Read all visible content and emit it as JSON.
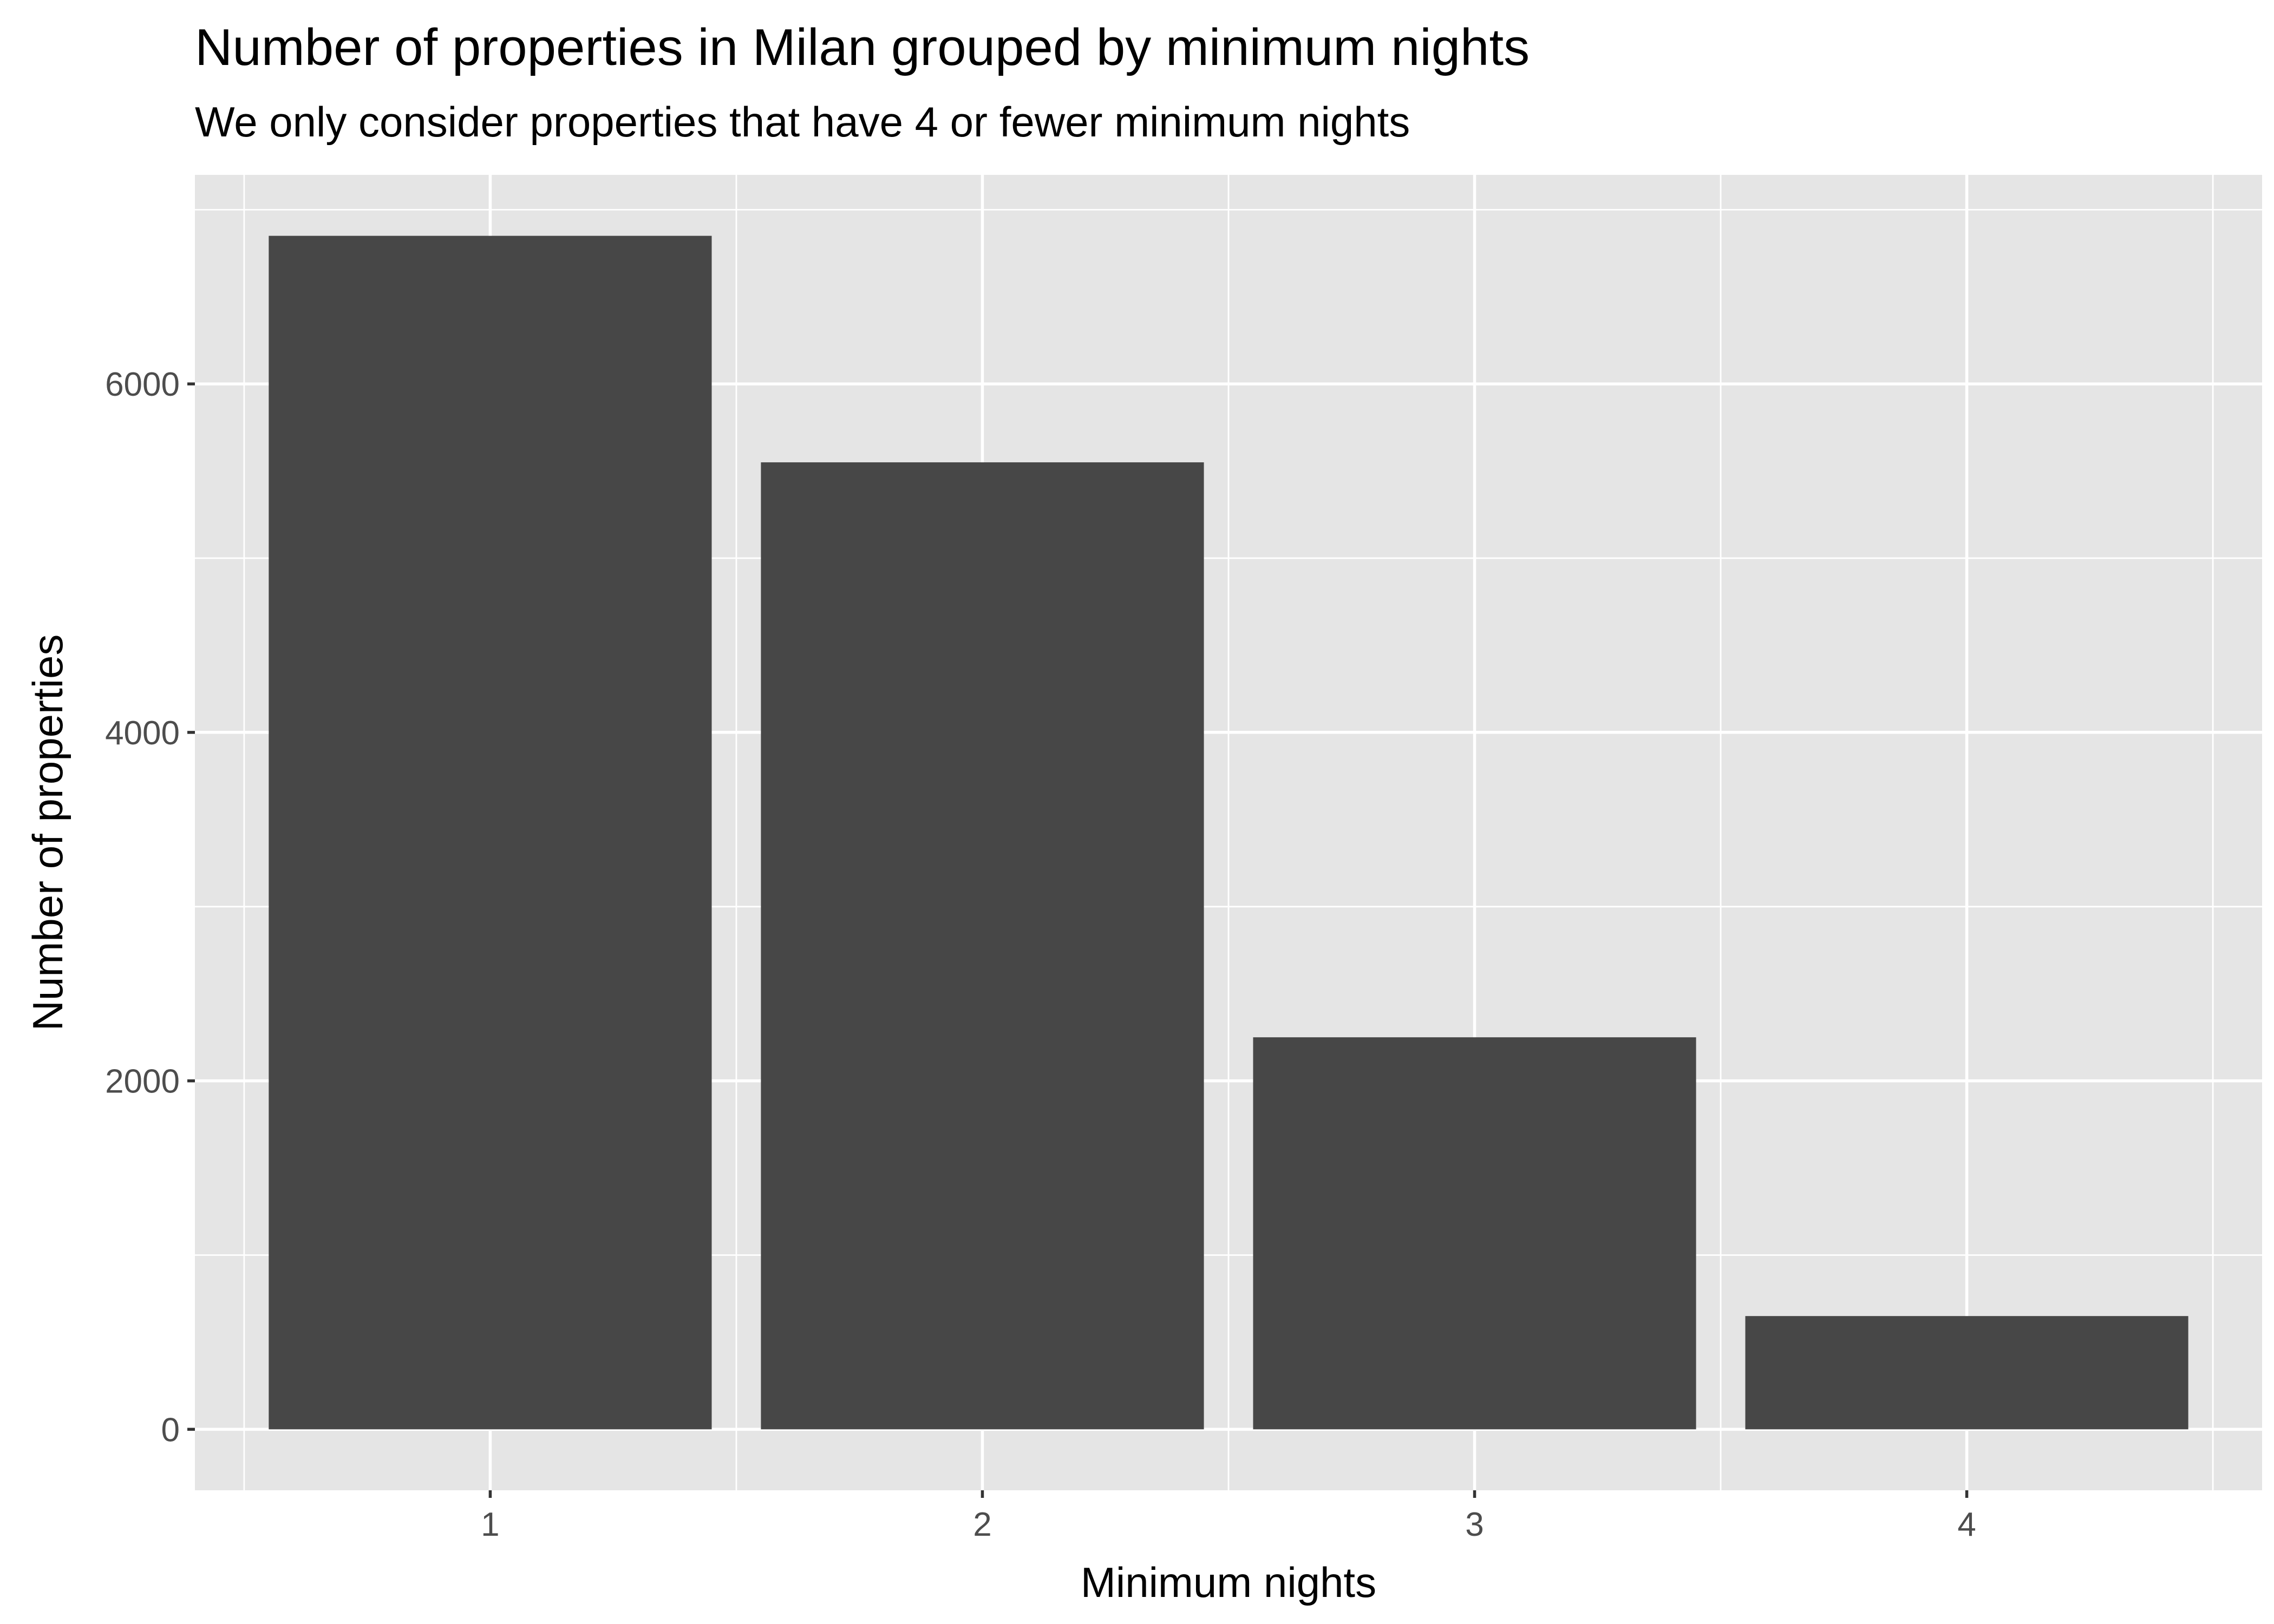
{
  "chart_data": {
    "type": "bar",
    "title": "Number of properties in Milan grouped by minimum nights",
    "subtitle": "We only consider properties that have 4 or fewer minimum nights",
    "xlabel": "Minimum nights",
    "ylabel": "Number of properties",
    "categories": [
      "1",
      "2",
      "3",
      "4"
    ],
    "values": [
      6850,
      5550,
      2250,
      650
    ],
    "ylim": [
      0,
      7000
    ],
    "yticks": [
      0,
      2000,
      4000,
      6000
    ],
    "ytick_labels": [
      "0",
      "2000",
      "4000",
      "6000"
    ],
    "grid": true,
    "bar_color": "#474747",
    "panel_color": "#e5e5e5"
  }
}
